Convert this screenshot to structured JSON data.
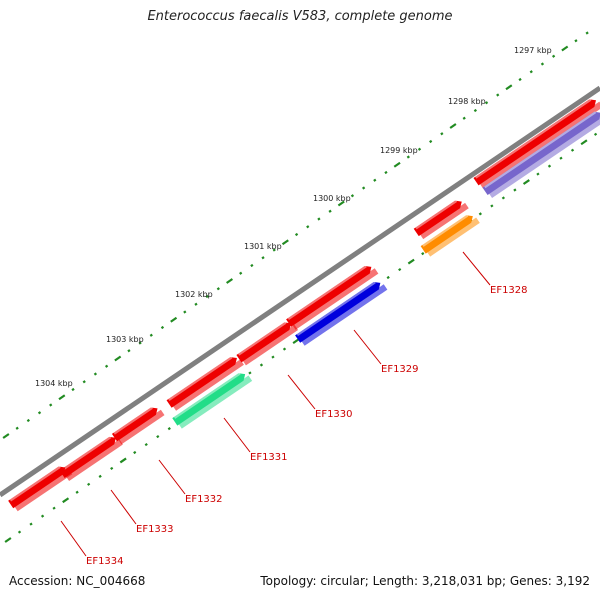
{
  "title": "Enterococcus faecalis V583, complete genome",
  "accession": "Accession: NC_004668",
  "summary": "Topology: circular; Length: 3,218,031 bp; Genes: 3,192",
  "scale_labels": [
    "1297 kbp",
    "1298 kbp",
    "1299 kbp",
    "1300 kbp",
    "1301 kbp",
    "1302 kbp",
    "1303 kbp",
    "1304 kbp"
  ],
  "genes": [
    {
      "label": "EF1328",
      "color": "#ff8c00"
    },
    {
      "label": "EF1329",
      "color": "#0000dd"
    },
    {
      "label": "EF1330",
      "color": "#ee0000"
    },
    {
      "label": "EF1331",
      "color": "#ee0000"
    },
    {
      "label": "EF1332",
      "color": "#ee0000"
    },
    {
      "label": "EF1333",
      "color": "#ee0000"
    },
    {
      "label": "EF1334",
      "color": "#ee0000"
    }
  ],
  "colors": {
    "backbone": "#808080",
    "tick": "#228b22",
    "label": "#cc0000",
    "red": "#ee0000",
    "blue": "#0000dd",
    "orange": "#ff8c00",
    "green": "#22dd88",
    "purple": "#7766cc"
  }
}
